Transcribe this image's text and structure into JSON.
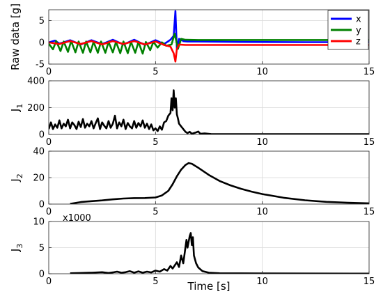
{
  "chart_data": [
    {
      "type": "line",
      "ylabel": "Raw data [g]",
      "xlim": [
        0,
        15
      ],
      "ylim": [
        -5,
        7.5
      ],
      "xticks": [
        0,
        5,
        10,
        15
      ],
      "yticks": [
        -5,
        0,
        5
      ],
      "grid": true,
      "legend_position": "top-right",
      "series": [
        {
          "name": "x",
          "color": "#0000ff",
          "points": [
            [
              0,
              0
            ],
            [
              0.3,
              0.4
            ],
            [
              0.5,
              -0.3
            ],
            [
              1,
              0.5
            ],
            [
              1.5,
              -0.5
            ],
            [
              2,
              0.5
            ],
            [
              2.5,
              -0.4
            ],
            [
              3,
              0.6
            ],
            [
              3.5,
              -0.5
            ],
            [
              4,
              0.6
            ],
            [
              4.5,
              -0.6
            ],
            [
              5,
              0.5
            ],
            [
              5.4,
              -0.4
            ],
            [
              5.7,
              0.6
            ],
            [
              5.85,
              1.5
            ],
            [
              5.93,
              7.2
            ],
            [
              6.0,
              -1.5
            ],
            [
              6.1,
              0.8
            ],
            [
              6.3,
              0.3
            ],
            [
              6.5,
              0.2
            ],
            [
              7,
              0.2
            ],
            [
              9,
              0.1
            ],
            [
              12,
              0.05
            ],
            [
              15,
              0.05
            ]
          ]
        },
        {
          "name": "y",
          "color": "#008000",
          "points": [
            [
              0,
              -0.3
            ],
            [
              0.2,
              -1.6
            ],
            [
              0.35,
              0.3
            ],
            [
              0.55,
              -2.0
            ],
            [
              0.7,
              0.2
            ],
            [
              0.9,
              -2.2
            ],
            [
              1.05,
              0.3
            ],
            [
              1.25,
              -2.3
            ],
            [
              1.4,
              0.2
            ],
            [
              1.6,
              -2.4
            ],
            [
              1.75,
              0.2
            ],
            [
              1.95,
              -2.3
            ],
            [
              2.1,
              0.1
            ],
            [
              2.3,
              -2.4
            ],
            [
              2.45,
              0.2
            ],
            [
              2.65,
              -2.4
            ],
            [
              2.8,
              0.1
            ],
            [
              3.0,
              -2.3
            ],
            [
              3.15,
              0.1
            ],
            [
              3.35,
              -2.5
            ],
            [
              3.5,
              0.2
            ],
            [
              3.7,
              -2.5
            ],
            [
              3.85,
              0.1
            ],
            [
              4.05,
              -2.4
            ],
            [
              4.2,
              0.1
            ],
            [
              4.4,
              -2.6
            ],
            [
              4.55,
              0.1
            ],
            [
              4.75,
              -1.8
            ],
            [
              4.9,
              0.1
            ],
            [
              5.1,
              -1.2
            ],
            [
              5.3,
              0.0
            ],
            [
              5.5,
              -0.8
            ],
            [
              5.75,
              -0.5
            ],
            [
              5.9,
              2.0
            ],
            [
              6.05,
              -1.5
            ],
            [
              6.2,
              0.8
            ],
            [
              6.4,
              0.6
            ],
            [
              7,
              0.55
            ],
            [
              10,
              0.55
            ],
            [
              15,
              0.55
            ]
          ]
        },
        {
          "name": "z",
          "color": "#ff0000",
          "points": [
            [
              0,
              0
            ],
            [
              0.5,
              -0.4
            ],
            [
              1,
              0.3
            ],
            [
              1.5,
              -0.4
            ],
            [
              2,
              0.3
            ],
            [
              2.5,
              -0.5
            ],
            [
              3,
              0.3
            ],
            [
              3.5,
              -0.4
            ],
            [
              4,
              0.3
            ],
            [
              4.5,
              -0.5
            ],
            [
              5,
              0.2
            ],
            [
              5.4,
              -0.6
            ],
            [
              5.7,
              -1.0
            ],
            [
              5.85,
              -2.5
            ],
            [
              5.93,
              -4.4
            ],
            [
              6.0,
              -1.5
            ],
            [
              6.1,
              -0.5
            ],
            [
              6.4,
              -0.6
            ],
            [
              7,
              -0.6
            ],
            [
              9,
              -0.6
            ],
            [
              12,
              -0.6
            ],
            [
              15,
              -0.6
            ]
          ]
        }
      ]
    },
    {
      "type": "line",
      "ylabel": "J",
      "ylabel_sub": "1",
      "xlim": [
        0,
        15
      ],
      "ylim": [
        0,
        400
      ],
      "xticks": [
        0,
        5,
        10,
        15
      ],
      "yticks": [
        0,
        200,
        400
      ],
      "grid": true,
      "series": [
        {
          "color": "#000000",
          "points": [
            [
              0,
              40
            ],
            [
              0.1,
              90
            ],
            [
              0.2,
              40
            ],
            [
              0.3,
              75
            ],
            [
              0.4,
              50
            ],
            [
              0.5,
              105
            ],
            [
              0.6,
              45
            ],
            [
              0.7,
              80
            ],
            [
              0.8,
              60
            ],
            [
              0.9,
              110
            ],
            [
              1.0,
              45
            ],
            [
              1.1,
              90
            ],
            [
              1.2,
              70
            ],
            [
              1.3,
              40
            ],
            [
              1.4,
              95
            ],
            [
              1.5,
              55
            ],
            [
              1.6,
              115
            ],
            [
              1.7,
              50
            ],
            [
              1.8,
              80
            ],
            [
              1.9,
              60
            ],
            [
              2.0,
              100
            ],
            [
              2.1,
              45
            ],
            [
              2.2,
              85
            ],
            [
              2.3,
              120
            ],
            [
              2.4,
              40
            ],
            [
              2.5,
              90
            ],
            [
              2.6,
              65
            ],
            [
              2.7,
              45
            ],
            [
              2.8,
              100
            ],
            [
              2.9,
              50
            ],
            [
              3.0,
              80
            ],
            [
              3.1,
              140
            ],
            [
              3.2,
              45
            ],
            [
              3.3,
              90
            ],
            [
              3.4,
              60
            ],
            [
              3.5,
              110
            ],
            [
              3.6,
              40
            ],
            [
              3.7,
              85
            ],
            [
              3.8,
              60
            ],
            [
              3.9,
              45
            ],
            [
              4.0,
              100
            ],
            [
              4.1,
              50
            ],
            [
              4.2,
              85
            ],
            [
              4.3,
              60
            ],
            [
              4.4,
              105
            ],
            [
              4.5,
              50
            ],
            [
              4.6,
              80
            ],
            [
              4.7,
              40
            ],
            [
              4.8,
              75
            ],
            [
              4.9,
              30
            ],
            [
              5.0,
              45
            ],
            [
              5.1,
              25
            ],
            [
              5.2,
              60
            ],
            [
              5.3,
              35
            ],
            [
              5.4,
              90
            ],
            [
              5.5,
              100
            ],
            [
              5.6,
              140
            ],
            [
              5.7,
              160
            ],
            [
              5.75,
              270
            ],
            [
              5.8,
              180
            ],
            [
              5.85,
              330
            ],
            [
              5.9,
              200
            ],
            [
              5.95,
              270
            ],
            [
              6.0,
              150
            ],
            [
              6.05,
              120
            ],
            [
              6.1,
              80
            ],
            [
              6.2,
              60
            ],
            [
              6.3,
              40
            ],
            [
              6.4,
              20
            ],
            [
              6.5,
              10
            ],
            [
              6.6,
              20
            ],
            [
              6.7,
              5
            ],
            [
              6.9,
              15
            ],
            [
              7.0,
              22
            ],
            [
              7.1,
              5
            ],
            [
              7.3,
              8
            ],
            [
              7.6,
              3
            ],
            [
              8,
              2
            ],
            [
              10,
              2
            ],
            [
              15,
              2
            ]
          ]
        }
      ]
    },
    {
      "type": "line",
      "ylabel": "J",
      "ylabel_sub": "2",
      "xlim": [
        0,
        15
      ],
      "ylim": [
        0,
        40
      ],
      "xticks": [
        0,
        5,
        10,
        15
      ],
      "yticks": [
        0,
        20,
        40
      ],
      "grid": true,
      "series": [
        {
          "color": "#000000",
          "points": [
            [
              1.0,
              0.2
            ],
            [
              1.5,
              1.5
            ],
            [
              2.0,
              2.2
            ],
            [
              2.5,
              2.8
            ],
            [
              3.0,
              3.6
            ],
            [
              3.5,
              4.2
            ],
            [
              4.0,
              4.5
            ],
            [
              4.5,
              4.6
            ],
            [
              5.0,
              5.0
            ],
            [
              5.3,
              6.5
            ],
            [
              5.6,
              10
            ],
            [
              5.8,
              15
            ],
            [
              6.0,
              21
            ],
            [
              6.2,
              26
            ],
            [
              6.4,
              29.5
            ],
            [
              6.55,
              31
            ],
            [
              6.7,
              30.5
            ],
            [
              7.0,
              27.5
            ],
            [
              7.5,
              22
            ],
            [
              8.0,
              17.5
            ],
            [
              8.5,
              14.2
            ],
            [
              9.0,
              11.6
            ],
            [
              9.5,
              9.4
            ],
            [
              10.0,
              7.6
            ],
            [
              11.0,
              4.8
            ],
            [
              12.0,
              2.9
            ],
            [
              13.0,
              1.7
            ],
            [
              14.0,
              1.0
            ],
            [
              15.0,
              0.6
            ]
          ]
        }
      ]
    },
    {
      "type": "line",
      "ylabel": "J",
      "ylabel_sub": "3",
      "xlabel": "Time [s]",
      "scale_label": "x1000",
      "xlim": [
        0,
        15
      ],
      "ylim": [
        0,
        10
      ],
      "xticks": [
        0,
        5,
        10,
        15
      ],
      "yticks": [
        0,
        5,
        10
      ],
      "grid": true,
      "series": [
        {
          "color": "#000000",
          "points": [
            [
              1.0,
              0.1
            ],
            [
              1.5,
              0.15
            ],
            [
              2.0,
              0.2
            ],
            [
              2.5,
              0.3
            ],
            [
              2.8,
              0.15
            ],
            [
              3.0,
              0.25
            ],
            [
              3.2,
              0.4
            ],
            [
              3.4,
              0.2
            ],
            [
              3.6,
              0.3
            ],
            [
              3.8,
              0.5
            ],
            [
              4.0,
              0.2
            ],
            [
              4.2,
              0.45
            ],
            [
              4.4,
              0.2
            ],
            [
              4.6,
              0.4
            ],
            [
              4.8,
              0.25
            ],
            [
              5.0,
              0.6
            ],
            [
              5.2,
              0.4
            ],
            [
              5.4,
              0.9
            ],
            [
              5.55,
              0.6
            ],
            [
              5.7,
              1.5
            ],
            [
              5.8,
              1.0
            ],
            [
              6.0,
              2.2
            ],
            [
              6.1,
              1.3
            ],
            [
              6.2,
              3.5
            ],
            [
              6.3,
              2.0
            ],
            [
              6.45,
              6.5
            ],
            [
              6.5,
              5.0
            ],
            [
              6.6,
              7.2
            ],
            [
              6.65,
              7.8
            ],
            [
              6.7,
              5.5
            ],
            [
              6.75,
              7.0
            ],
            [
              6.8,
              3.5
            ],
            [
              6.9,
              2.0
            ],
            [
              7.0,
              1.2
            ],
            [
              7.2,
              0.5
            ],
            [
              7.5,
              0.2
            ],
            [
              8,
              0.1
            ],
            [
              10,
              0.05
            ],
            [
              15,
              0.03
            ]
          ]
        }
      ]
    }
  ]
}
